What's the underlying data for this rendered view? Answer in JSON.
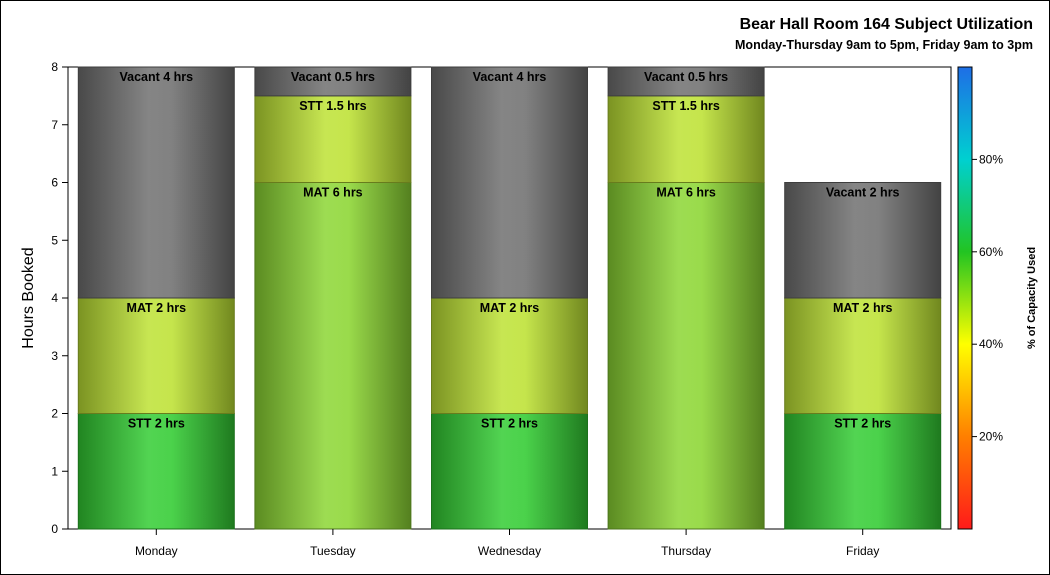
{
  "chart_data": {
    "type": "bar",
    "stacked": true,
    "title": "Bear Hall Room 164 Subject Utilization",
    "subtitle": "Monday-Thursday 9am to 5pm, Friday 9am to 3pm",
    "ylabel": "Hours Booked",
    "xlabel": "",
    "ylim": [
      0,
      8
    ],
    "yticks": [
      "0",
      "1",
      "2",
      "3",
      "4",
      "5",
      "6",
      "7",
      "8"
    ],
    "categories": [
      "Monday",
      "Tuesday",
      "Wednesday",
      "Thursday",
      "Friday"
    ],
    "bars": [
      {
        "category": "Monday",
        "segments": [
          {
            "label": "STT 2 hrs",
            "value": 2,
            "color": "#33cc33"
          },
          {
            "label": "MAT 2 hrs",
            "value": 2,
            "color": "#bde234"
          },
          {
            "label": "Vacant 4 hrs",
            "value": 4,
            "color": "#707070"
          }
        ]
      },
      {
        "category": "Tuesday",
        "segments": [
          {
            "label": "MAT 6 hrs",
            "value": 6,
            "color": "#8cd633"
          },
          {
            "label": "STT 1.5 hrs",
            "value": 1.5,
            "color": "#bde234"
          },
          {
            "label": "Vacant 0.5 hrs",
            "value": 0.5,
            "color": "#707070"
          }
        ]
      },
      {
        "category": "Wednesday",
        "segments": [
          {
            "label": "STT 2 hrs",
            "value": 2,
            "color": "#33cc33"
          },
          {
            "label": "MAT 2 hrs",
            "value": 2,
            "color": "#bde234"
          },
          {
            "label": "Vacant 4 hrs",
            "value": 4,
            "color": "#707070"
          }
        ]
      },
      {
        "category": "Thursday",
        "segments": [
          {
            "label": "MAT 6 hrs",
            "value": 6,
            "color": "#8cd633"
          },
          {
            "label": "STT 1.5 hrs",
            "value": 1.5,
            "color": "#bde234"
          },
          {
            "label": "Vacant 0.5 hrs",
            "value": 0.5,
            "color": "#707070"
          }
        ]
      },
      {
        "category": "Friday",
        "segments": [
          {
            "label": "STT 2 hrs",
            "value": 2,
            "color": "#33cc33"
          },
          {
            "label": "MAT 2 hrs",
            "value": 2,
            "color": "#bde234"
          },
          {
            "label": "Vacant 2 hrs",
            "value": 2,
            "color": "#707070"
          }
        ]
      }
    ],
    "colorbar": {
      "label": "% of Capacity Used",
      "range": [
        0,
        100
      ],
      "ticks": [
        "20%",
        "40%",
        "60%",
        "80%"
      ],
      "tick_values": [
        20,
        40,
        60,
        80
      ],
      "stops": [
        "#ff1a1a",
        "#ff7f00",
        "#ffff00",
        "#22c422",
        "#00d0d0",
        "#1e6ee6"
      ]
    },
    "grid": false,
    "legend": "colorbar-right"
  }
}
